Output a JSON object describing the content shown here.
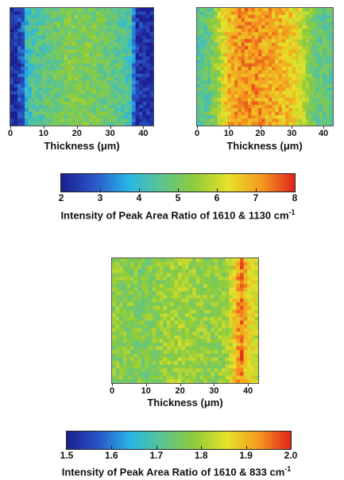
{
  "chart_data": [
    {
      "type": "heatmap",
      "xlabel": "Thickness (μm)",
      "xticks": [
        0,
        10,
        20,
        30,
        40
      ],
      "xlim": [
        0,
        43
      ],
      "colorbar": "ratio_1610_1130",
      "profile": [
        {
          "x": 0,
          "v": 2.1
        },
        {
          "x": 2,
          "v": 2.4
        },
        {
          "x": 4,
          "v": 3.0
        },
        {
          "x": 5,
          "v": 4.0
        },
        {
          "x": 7,
          "v": 4.4
        },
        {
          "x": 12,
          "v": 4.8
        },
        {
          "x": 18,
          "v": 5.2
        },
        {
          "x": 25,
          "v": 5.1
        },
        {
          "x": 30,
          "v": 4.8
        },
        {
          "x": 34,
          "v": 4.5
        },
        {
          "x": 36,
          "v": 4.2
        },
        {
          "x": 37,
          "v": 3.2
        },
        {
          "x": 38,
          "v": 2.4
        },
        {
          "x": 43,
          "v": 2.1
        }
      ]
    },
    {
      "type": "heatmap",
      "xlabel": "Thickness (μm)",
      "xticks": [
        0,
        10,
        20,
        30,
        40
      ],
      "xlim": [
        0,
        43
      ],
      "colorbar": "ratio_1610_1130",
      "profile": [
        {
          "x": 0,
          "v": 4.5
        },
        {
          "x": 4,
          "v": 4.8
        },
        {
          "x": 7,
          "v": 5.8
        },
        {
          "x": 10,
          "v": 6.8
        },
        {
          "x": 15,
          "v": 7.2
        },
        {
          "x": 20,
          "v": 7.1
        },
        {
          "x": 25,
          "v": 6.9
        },
        {
          "x": 30,
          "v": 6.6
        },
        {
          "x": 33,
          "v": 6.0
        },
        {
          "x": 36,
          "v": 5.2
        },
        {
          "x": 38,
          "v": 4.8
        },
        {
          "x": 43,
          "v": 4.6
        }
      ]
    },
    {
      "type": "heatmap",
      "xlabel": "Thickness (μm)",
      "xticks": [
        0,
        10,
        20,
        30,
        40
      ],
      "xlim": [
        0,
        43
      ],
      "colorbar": "ratio_1610_833",
      "profile": [
        {
          "x": 0,
          "v": 1.78
        },
        {
          "x": 5,
          "v": 1.77
        },
        {
          "x": 10,
          "v": 1.76
        },
        {
          "x": 15,
          "v": 1.79
        },
        {
          "x": 20,
          "v": 1.8
        },
        {
          "x": 25,
          "v": 1.79
        },
        {
          "x": 30,
          "v": 1.78
        },
        {
          "x": 34,
          "v": 1.8
        },
        {
          "x": 36,
          "v": 1.88
        },
        {
          "x": 38,
          "v": 1.95
        },
        {
          "x": 40,
          "v": 1.88
        },
        {
          "x": 43,
          "v": 1.82
        }
      ]
    }
  ],
  "colorbars": {
    "ratio_1610_1130": {
      "ticks": [
        2,
        3,
        4,
        5,
        6,
        7,
        8
      ],
      "range": [
        2,
        8
      ],
      "title_main": "Intensity of Peak Area Ratio of 1610 & 1130 cm",
      "title_sup": "-1"
    },
    "ratio_1610_833": {
      "ticks": [
        1.5,
        1.6,
        1.7,
        1.8,
        1.9,
        2.0
      ],
      "tick_labels": [
        "1.5",
        "1.6",
        "1.7",
        "1.8",
        "1.9",
        "2.0"
      ],
      "range": [
        1.5,
        2.0
      ],
      "title_main": "Intensity of Peak Area Ratio of 1610 & 833 cm",
      "title_sup": "-1"
    }
  },
  "colormap": [
    "#1c1f8f",
    "#2a56c8",
    "#27b6e6",
    "#5cc48f",
    "#8fcc3a",
    "#e6e22a",
    "#f59a1e",
    "#e0231c"
  ]
}
